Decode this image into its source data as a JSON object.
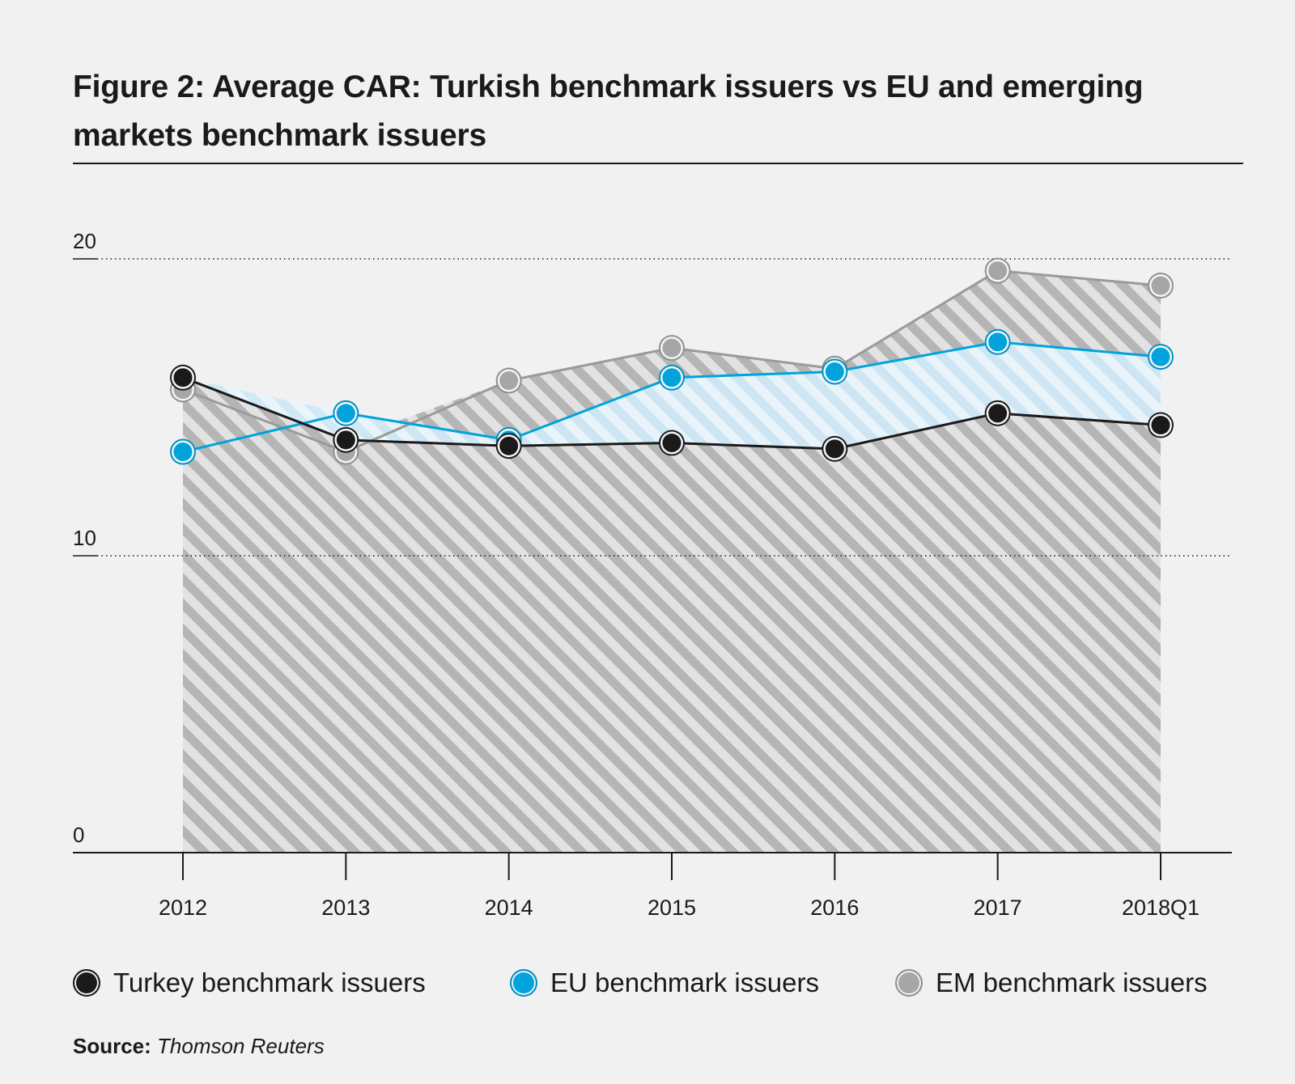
{
  "title": "Figure 2: Average CAR: Turkish benchmark issuers vs EU and emerging markets benchmark issuers",
  "source": {
    "label": "Source:",
    "value": "Thomson Reuters"
  },
  "colors": {
    "background": "#f1f1f1",
    "turkey": "#1a1a1a",
    "eu": "#00a3dc",
    "em": "#a6a6a6",
    "em_line": "#9a9a9a",
    "hatch_dark": "#b5b5b5",
    "hatch_light": "#e2e2e2",
    "eu_fill": "#cfe9f6",
    "eu_hatch": "#e9f5fb"
  },
  "chart_data": {
    "type": "line",
    "title": "Figure 2: Average CAR: Turkish benchmark issuers vs EU and emerging markets benchmark issuers",
    "xlabel": "",
    "ylabel": "",
    "categories": [
      "2012",
      "2013",
      "2014",
      "2015",
      "2016",
      "2017",
      "2018Q1"
    ],
    "ylim": [
      0,
      20
    ],
    "yticks": [
      "0",
      "10",
      "20"
    ],
    "ytick_values": [
      0,
      10,
      20
    ],
    "grid": "dotted horizontal at 10 and 20",
    "legend_position": "bottom",
    "series": [
      {
        "name": "Turkey benchmark issuers",
        "key": "turkey",
        "values": [
          16.0,
          13.9,
          13.7,
          13.8,
          13.6,
          14.8,
          14.4
        ]
      },
      {
        "name": "EU benchmark issuers",
        "key": "eu",
        "values": [
          13.5,
          14.8,
          13.9,
          16.0,
          16.2,
          17.2,
          16.7
        ]
      },
      {
        "name": "EM benchmark issuers",
        "key": "em",
        "values": [
          15.6,
          13.5,
          15.9,
          17.0,
          16.3,
          19.6,
          19.1
        ]
      }
    ]
  }
}
